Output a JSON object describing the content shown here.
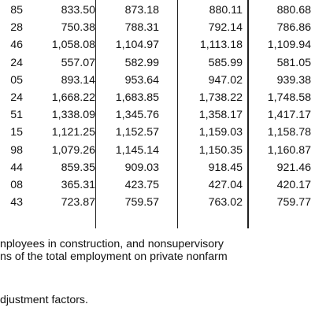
{
  "rows": [
    [
      "85",
      "833.50",
      "873.18",
      "880.11",
      "880.68"
    ],
    [
      "28",
      "750.38",
      "788.31",
      "792.14",
      "786.86"
    ],
    [
      "46",
      "1,058.08",
      "1,104.97",
      "1,113.18",
      "1,109.94"
    ],
    [
      "24",
      "557.07",
      "582.99",
      "585.99",
      "581.05"
    ],
    [
      "05",
      "893.14",
      "953.64",
      "947.02",
      "939.38"
    ],
    [
      "24",
      "1,668.22",
      "1,683.85",
      "1,738.22",
      "1,748.58"
    ],
    [
      "51",
      "1,338.09",
      "1,345.76",
      "1,358.17",
      "1,417.17"
    ],
    [
      "15",
      "1,121.25",
      "1,152.57",
      "1,159.03",
      "1,158.78"
    ],
    [
      "98",
      "1,079.26",
      "1,145.14",
      "1,150.35",
      "1,160.87"
    ],
    [
      "44",
      "859.35",
      "909.03",
      "918.45",
      "921.46"
    ],
    [
      "08",
      "365.31",
      "423.75",
      "427.04",
      "420.17"
    ],
    [
      "43",
      "723.87",
      "759.57",
      "763.02",
      "759.77"
    ]
  ],
  "footnotes": {
    "line1": "nployees in construction, and nonsupervisory",
    "line2": "ns of the total employment on private nonfarm",
    "line3": "djustment factors."
  }
}
